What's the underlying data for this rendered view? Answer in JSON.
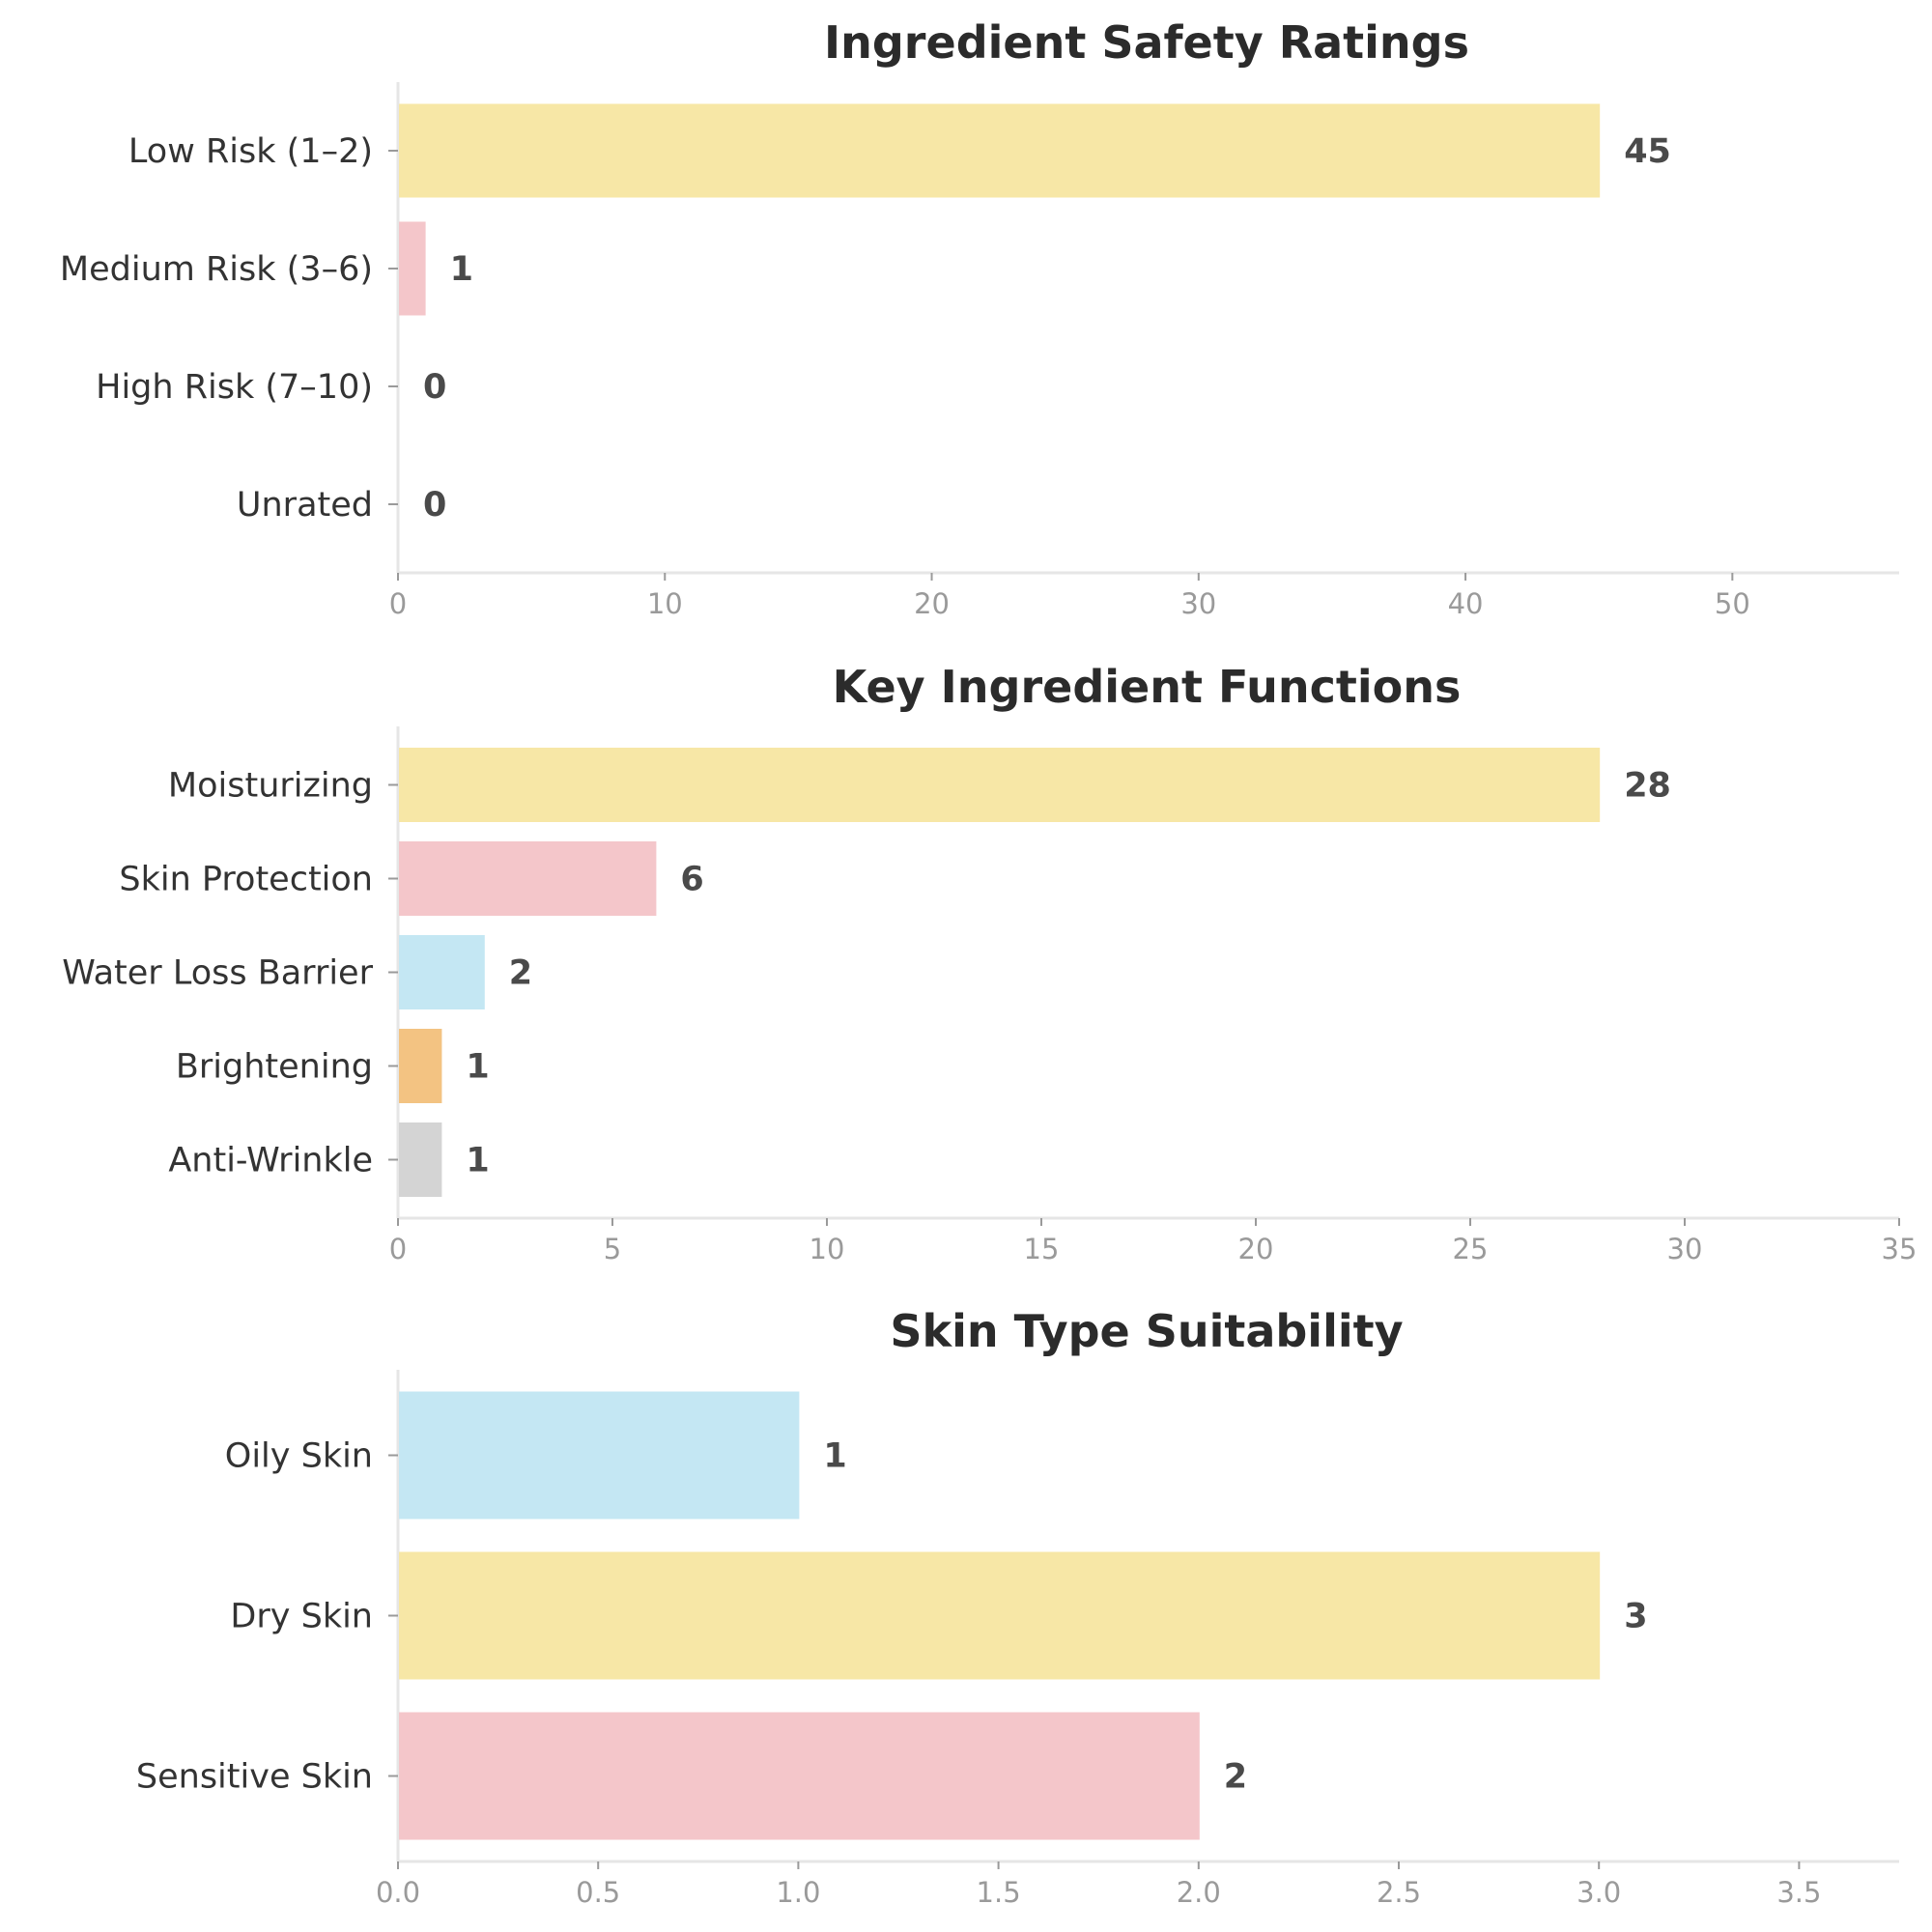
{
  "chart_data": [
    {
      "type": "bar",
      "orientation": "horizontal",
      "title": "Ingredient Safety Ratings",
      "categories": [
        "Low Risk (1–2)",
        "Medium Risk (3–6)",
        "High Risk (7–10)",
        "Unrated"
      ],
      "values": [
        45,
        1,
        0,
        0
      ],
      "colors": [
        "#f7e7a6",
        "#f4c6ca",
        "#c4e7f3",
        "#f3c382"
      ],
      "xlim": [
        0,
        56.25
      ],
      "xticks": [
        0,
        10,
        20,
        30,
        40,
        50
      ],
      "tick_labels": [
        "0",
        "10",
        "20",
        "30",
        "40",
        "50"
      ]
    },
    {
      "type": "bar",
      "orientation": "horizontal",
      "title": "Key Ingredient Functions",
      "categories": [
        "Moisturizing",
        "Skin Protection",
        "Water Loss Barrier",
        "Brightening",
        "Anti-Wrinkle"
      ],
      "values": [
        28,
        6,
        2,
        1,
        1
      ],
      "colors": [
        "#f7e7a6",
        "#f4c6ca",
        "#c4e7f3",
        "#f3c382",
        "#d4d4d4"
      ],
      "xlim": [
        0,
        35
      ],
      "xticks": [
        0,
        5,
        10,
        15,
        20,
        25,
        30,
        35
      ],
      "tick_labels": [
        "0",
        "5",
        "10",
        "15",
        "20",
        "25",
        "30",
        "35"
      ]
    },
    {
      "type": "bar",
      "orientation": "horizontal",
      "title": "Skin Type Suitability",
      "categories": [
        "Oily Skin",
        "Dry Skin",
        "Sensitive Skin"
      ],
      "values": [
        1,
        3,
        2
      ],
      "colors": [
        "#c4e7f3",
        "#f7e7a6",
        "#f4c6ca"
      ],
      "xlim": [
        0,
        3.75
      ],
      "xticks": [
        0,
        0.5,
        1,
        1.5,
        2,
        2.5,
        3,
        3.5
      ],
      "tick_labels": [
        "0.0",
        "0.5",
        "1.0",
        "1.5",
        "2.0",
        "2.5",
        "3.0",
        "3.5"
      ]
    }
  ]
}
